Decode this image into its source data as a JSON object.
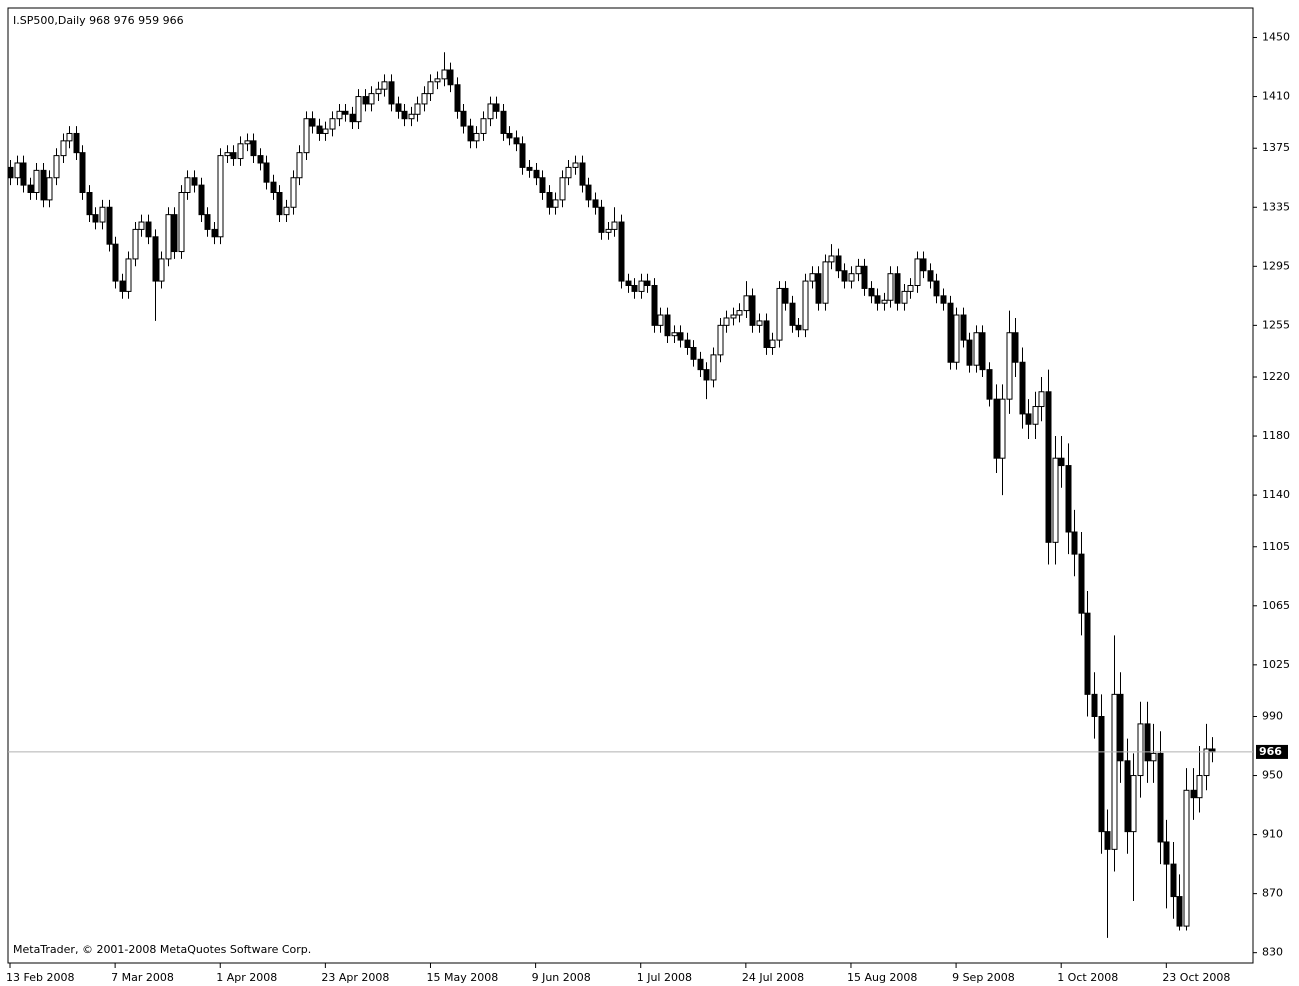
{
  "chart_data": {
    "type": "candlestick",
    "title": "I.SP500,Daily  968 976 959 966",
    "copyright": "MetaTrader, © 2001-2008 MetaQuotes Software Corp.",
    "up_color": "#ffffff",
    "down_color": "#000000",
    "ylim": [
      823,
      1470
    ],
    "yticks": [
      1450,
      1410,
      1375,
      1335,
      1295,
      1255,
      1220,
      1180,
      1140,
      1105,
      1065,
      1025,
      990,
      950,
      910,
      870,
      830
    ],
    "categories": [
      "13 Feb 2008",
      null,
      null,
      null,
      null,
      null,
      null,
      null,
      null,
      null,
      null,
      null,
      null,
      null,
      null,
      null,
      "7 Mar 2008",
      null,
      null,
      null,
      null,
      null,
      null,
      null,
      null,
      null,
      null,
      null,
      null,
      null,
      null,
      null,
      "1 Apr 2008",
      null,
      null,
      null,
      null,
      null,
      null,
      null,
      null,
      null,
      null,
      null,
      null,
      null,
      null,
      null,
      "23 Apr 2008",
      null,
      null,
      null,
      null,
      null,
      null,
      null,
      null,
      null,
      null,
      null,
      null,
      null,
      null,
      null,
      "15 May 2008",
      null,
      null,
      null,
      null,
      null,
      null,
      null,
      null,
      null,
      null,
      null,
      null,
      null,
      null,
      null,
      "9 Jun 2008",
      null,
      null,
      null,
      null,
      null,
      null,
      null,
      null,
      null,
      null,
      null,
      null,
      null,
      null,
      null,
      "1 Jul 2008",
      null,
      null,
      null,
      null,
      null,
      null,
      null,
      null,
      null,
      null,
      null,
      null,
      null,
      null,
      null,
      "24 Jul 2008",
      null,
      null,
      null,
      null,
      null,
      null,
      null,
      null,
      null,
      null,
      null,
      null,
      null,
      null,
      null,
      "15 Aug 2008",
      null,
      null,
      null,
      null,
      null,
      null,
      null,
      null,
      null,
      null,
      null,
      null,
      null,
      null,
      null,
      "9 Sep 2008",
      null,
      null,
      null,
      null,
      null,
      null,
      null,
      null,
      null,
      null,
      null,
      null,
      null,
      null,
      null,
      "1 Oct 2008",
      null,
      null,
      null,
      null,
      null,
      null,
      null,
      null,
      null,
      null,
      null,
      null,
      null,
      null,
      null,
      "23 Oct 2008",
      null,
      null,
      null,
      null,
      null,
      null,
      null
    ],
    "open": [
      1362,
      1355,
      1365,
      1350,
      1345,
      1360,
      1340,
      1355,
      1370,
      1380,
      1385,
      1372,
      1345,
      1330,
      1325,
      1335,
      1310,
      1285,
      1278,
      1300,
      1320,
      1325,
      1315,
      1285,
      1300,
      1330,
      1305,
      1345,
      1355,
      1350,
      1330,
      1320,
      1315,
      1370,
      1372,
      1368,
      1378,
      1380,
      1370,
      1365,
      1352,
      1345,
      1330,
      1335,
      1355,
      1372,
      1395,
      1390,
      1385,
      1388,
      1395,
      1400,
      1398,
      1393,
      1410,
      1405,
      1412,
      1415,
      1420,
      1405,
      1400,
      1395,
      1398,
      1405,
      1412,
      1420,
      1422,
      1428,
      1418,
      1400,
      1390,
      1380,
      1385,
      1395,
      1405,
      1400,
      1385,
      1382,
      1378,
      1362,
      1360,
      1355,
      1345,
      1335,
      1340,
      1355,
      1362,
      1365,
      1350,
      1340,
      1335,
      1318,
      1320,
      1325,
      1285,
      1282,
      1278,
      1285,
      1282,
      1255,
      1262,
      1248,
      1250,
      1245,
      1240,
      1232,
      1225,
      1218,
      1235,
      1255,
      1260,
      1262,
      1265,
      1275,
      1255,
      1258,
      1240,
      1245,
      1280,
      1270,
      1255,
      1252,
      1285,
      1290,
      1270,
      1298,
      1302,
      1292,
      1285,
      1290,
      1295,
      1280,
      1275,
      1270,
      1272,
      1290,
      1270,
      1278,
      1282,
      1300,
      1292,
      1285,
      1275,
      1270,
      1230,
      1262,
      1245,
      1228,
      1250,
      1225,
      1205,
      1165,
      1205,
      1250,
      1230,
      1195,
      1188,
      1200,
      1210,
      1108,
      1165,
      1160,
      1115,
      1100,
      1060,
      1005,
      990,
      912,
      900,
      1005,
      960,
      912,
      950,
      985,
      960,
      965,
      905,
      890,
      868,
      848,
      940,
      935,
      950,
      968
    ],
    "high": [
      1367,
      1370,
      1370,
      1355,
      1365,
      1365,
      1360,
      1375,
      1385,
      1390,
      1390,
      1377,
      1350,
      1335,
      1340,
      1340,
      1315,
      1290,
      1305,
      1325,
      1330,
      1330,
      1320,
      1305,
      1335,
      1335,
      1350,
      1360,
      1360,
      1355,
      1335,
      1325,
      1375,
      1377,
      1377,
      1383,
      1385,
      1385,
      1375,
      1370,
      1357,
      1350,
      1340,
      1360,
      1377,
      1400,
      1400,
      1395,
      1393,
      1400,
      1405,
      1405,
      1403,
      1415,
      1415,
      1417,
      1420,
      1425,
      1425,
      1410,
      1405,
      1403,
      1410,
      1417,
      1425,
      1427,
      1440,
      1433,
      1423,
      1405,
      1395,
      1390,
      1400,
      1410,
      1410,
      1405,
      1390,
      1387,
      1383,
      1367,
      1365,
      1360,
      1350,
      1345,
      1360,
      1367,
      1370,
      1370,
      1355,
      1345,
      1340,
      1325,
      1335,
      1330,
      1290,
      1287,
      1290,
      1290,
      1287,
      1267,
      1267,
      1255,
      1255,
      1250,
      1245,
      1237,
      1230,
      1240,
      1260,
      1265,
      1267,
      1270,
      1285,
      1280,
      1263,
      1263,
      1250,
      1285,
      1285,
      1275,
      1260,
      1290,
      1295,
      1295,
      1303,
      1310,
      1307,
      1297,
      1295,
      1300,
      1300,
      1285,
      1280,
      1277,
      1295,
      1295,
      1283,
      1287,
      1305,
      1305,
      1297,
      1290,
      1280,
      1275,
      1267,
      1267,
      1250,
      1255,
      1255,
      1230,
      1215,
      1215,
      1265,
      1260,
      1240,
      1205,
      1210,
      1220,
      1225,
      1180,
      1180,
      1175,
      1130,
      1115,
      1075,
      1020,
      1005,
      927,
      1045,
      1020,
      975,
      965,
      1000,
      1000,
      985,
      980,
      920,
      905,
      883,
      955,
      955,
      970,
      985,
      976
    ],
    "low": [
      1350,
      1350,
      1345,
      1340,
      1340,
      1335,
      1335,
      1350,
      1365,
      1375,
      1367,
      1340,
      1325,
      1320,
      1320,
      1305,
      1280,
      1273,
      1273,
      1295,
      1315,
      1310,
      1258,
      1280,
      1295,
      1300,
      1300,
      1340,
      1345,
      1325,
      1315,
      1310,
      1310,
      1365,
      1363,
      1363,
      1373,
      1365,
      1360,
      1347,
      1340,
      1325,
      1325,
      1330,
      1350,
      1367,
      1385,
      1380,
      1380,
      1383,
      1390,
      1393,
      1388,
      1388,
      1400,
      1400,
      1407,
      1410,
      1400,
      1395,
      1390,
      1390,
      1393,
      1400,
      1407,
      1415,
      1417,
      1413,
      1395,
      1385,
      1375,
      1375,
      1380,
      1390,
      1395,
      1380,
      1377,
      1373,
      1357,
      1355,
      1350,
      1340,
      1330,
      1330,
      1335,
      1350,
      1357,
      1345,
      1335,
      1330,
      1313,
      1313,
      1315,
      1280,
      1277,
      1273,
      1273,
      1277,
      1250,
      1250,
      1243,
      1243,
      1240,
      1235,
      1227,
      1220,
      1205,
      1213,
      1230,
      1250,
      1255,
      1257,
      1260,
      1250,
      1250,
      1235,
      1235,
      1240,
      1265,
      1250,
      1247,
      1247,
      1280,
      1265,
      1265,
      1293,
      1287,
      1280,
      1280,
      1285,
      1275,
      1270,
      1265,
      1265,
      1267,
      1265,
      1265,
      1273,
      1277,
      1287,
      1280,
      1270,
      1265,
      1225,
      1225,
      1240,
      1223,
      1223,
      1220,
      1200,
      1155,
      1140,
      1195,
      1220,
      1185,
      1178,
      1178,
      1190,
      1093,
      1093,
      1145,
      1100,
      1085,
      1045,
      990,
      975,
      897,
      840,
      885,
      945,
      897,
      865,
      935,
      945,
      945,
      890,
      860,
      853,
      845,
      845,
      920,
      925,
      940,
      959
    ],
    "close": [
      1355,
      1365,
      1350,
      1345,
      1360,
      1340,
      1355,
      1370,
      1380,
      1385,
      1372,
      1345,
      1330,
      1325,
      1335,
      1310,
      1285,
      1278,
      1300,
      1320,
      1325,
      1315,
      1285,
      1300,
      1330,
      1305,
      1345,
      1355,
      1350,
      1330,
      1320,
      1315,
      1370,
      1372,
      1368,
      1378,
      1380,
      1370,
      1365,
      1352,
      1345,
      1330,
      1335,
      1355,
      1372,
      1395,
      1390,
      1385,
      1388,
      1395,
      1400,
      1398,
      1393,
      1410,
      1405,
      1412,
      1415,
      1420,
      1405,
      1400,
      1395,
      1398,
      1405,
      1412,
      1420,
      1422,
      1428,
      1418,
      1400,
      1390,
      1380,
      1385,
      1395,
      1405,
      1400,
      1385,
      1382,
      1378,
      1362,
      1360,
      1355,
      1345,
      1335,
      1340,
      1355,
      1362,
      1365,
      1350,
      1340,
      1335,
      1318,
      1320,
      1325,
      1285,
      1282,
      1278,
      1285,
      1282,
      1255,
      1262,
      1248,
      1250,
      1245,
      1240,
      1232,
      1225,
      1218,
      1235,
      1255,
      1260,
      1262,
      1265,
      1275,
      1255,
      1258,
      1240,
      1245,
      1280,
      1270,
      1255,
      1252,
      1285,
      1290,
      1270,
      1298,
      1302,
      1292,
      1285,
      1290,
      1295,
      1280,
      1275,
      1270,
      1272,
      1290,
      1270,
      1278,
      1282,
      1300,
      1292,
      1285,
      1275,
      1270,
      1230,
      1262,
      1245,
      1228,
      1250,
      1225,
      1205,
      1165,
      1205,
      1250,
      1230,
      1195,
      1188,
      1200,
      1210,
      1108,
      1165,
      1160,
      1115,
      1100,
      1060,
      1005,
      990,
      912,
      900,
      1005,
      960,
      912,
      950,
      985,
      960,
      965,
      905,
      890,
      868,
      848,
      940,
      935,
      950,
      968,
      966
    ]
  }
}
